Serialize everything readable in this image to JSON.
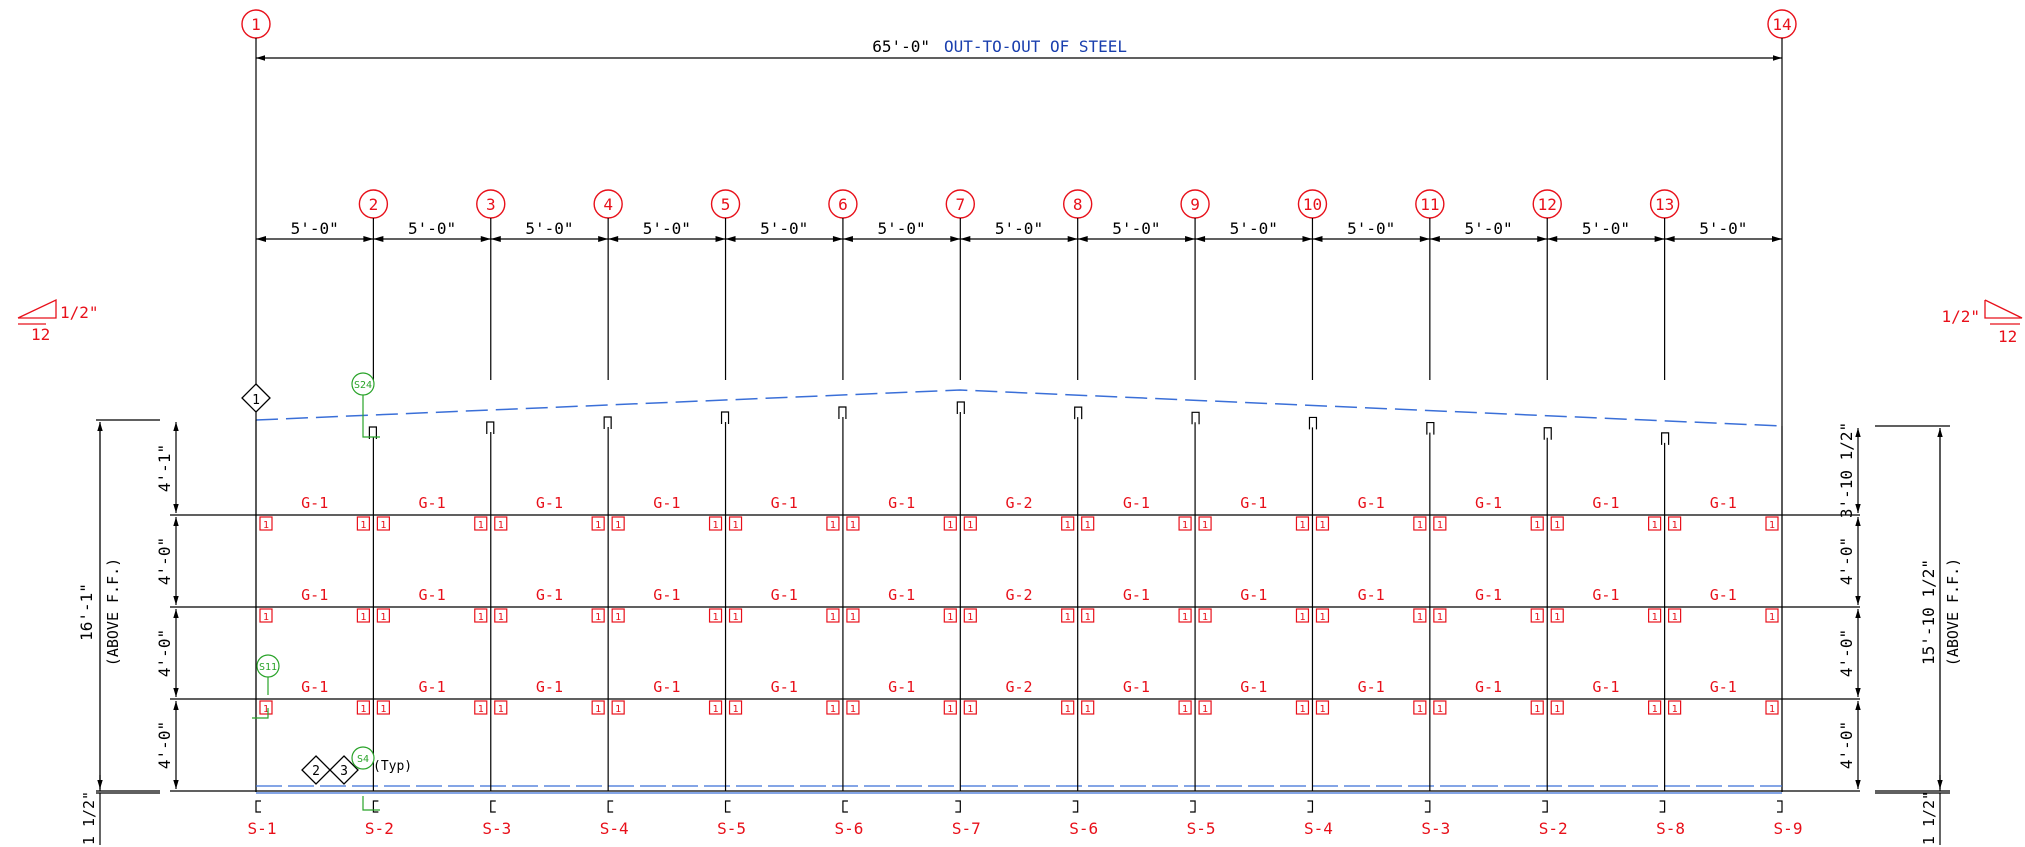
{
  "colors": {
    "line": "#000000",
    "label_red": "#e8101a",
    "note_blue": "#1a3fae",
    "roof_blue": "#3a6fd8",
    "callout_green": "#29a329"
  },
  "overall": {
    "dimension": "65'-0\"",
    "note": "OUT-TO-OUT OF STEEL"
  },
  "gridlines": [
    "1",
    "2",
    "3",
    "4",
    "5",
    "6",
    "7",
    "8",
    "9",
    "10",
    "11",
    "12",
    "13",
    "14"
  ],
  "bay_spacing": [
    "5'-0\"",
    "5'-0\"",
    "5'-0\"",
    "5'-0\"",
    "5'-0\"",
    "5'-0\"",
    "5'-0\"",
    "5'-0\"",
    "5'-0\"",
    "5'-0\"",
    "5'-0\"",
    "5'-0\"",
    "5'-0\""
  ],
  "slopes": {
    "left": {
      "rise": "1/2\"",
      "run": "12"
    },
    "right": {
      "rise": "1/2\"",
      "run": "12"
    }
  },
  "left_dims": {
    "overall": "16'-1\"",
    "overall_note": "(ABOVE F.F.)",
    "segments": [
      "4'-1\"",
      "4'-0\"",
      "4'-0\"",
      "4'-0\""
    ],
    "base": "1 1/2\""
  },
  "right_dims": {
    "overall": "15'-10 1/2\"",
    "overall_note": "(ABOVE F.F.)",
    "segments": [
      "3'-10 1/2\"",
      "4'-0\"",
      "4'-0\"",
      "4'-0\""
    ],
    "base": "1 1/2\""
  },
  "girt_rows": [
    [
      "G-1",
      "G-1",
      "G-1",
      "G-1",
      "G-1",
      "G-1",
      "G-2",
      "G-1",
      "G-1",
      "G-1",
      "G-1",
      "G-1",
      "G-1"
    ],
    [
      "G-1",
      "G-1",
      "G-1",
      "G-1",
      "G-1",
      "G-1",
      "G-2",
      "G-1",
      "G-1",
      "G-1",
      "G-1",
      "G-1",
      "G-1"
    ],
    [
      "G-1",
      "G-1",
      "G-1",
      "G-1",
      "G-1",
      "G-1",
      "G-2",
      "G-1",
      "G-1",
      "G-1",
      "G-1",
      "G-1",
      "G-1"
    ]
  ],
  "clip_mark": "1",
  "columns": [
    "S-1",
    "S-2",
    "S-3",
    "S-4",
    "S-5",
    "S-6",
    "S-7",
    "S-6",
    "S-5",
    "S-4",
    "S-3",
    "S-2",
    "S-8",
    "S-9"
  ],
  "callouts": {
    "roof_tag": "1",
    "s24": "S24",
    "s11": "S11",
    "s4": "S4",
    "base_tag_2": "2",
    "base_tag_3": "3",
    "typ": "(Typ)"
  }
}
